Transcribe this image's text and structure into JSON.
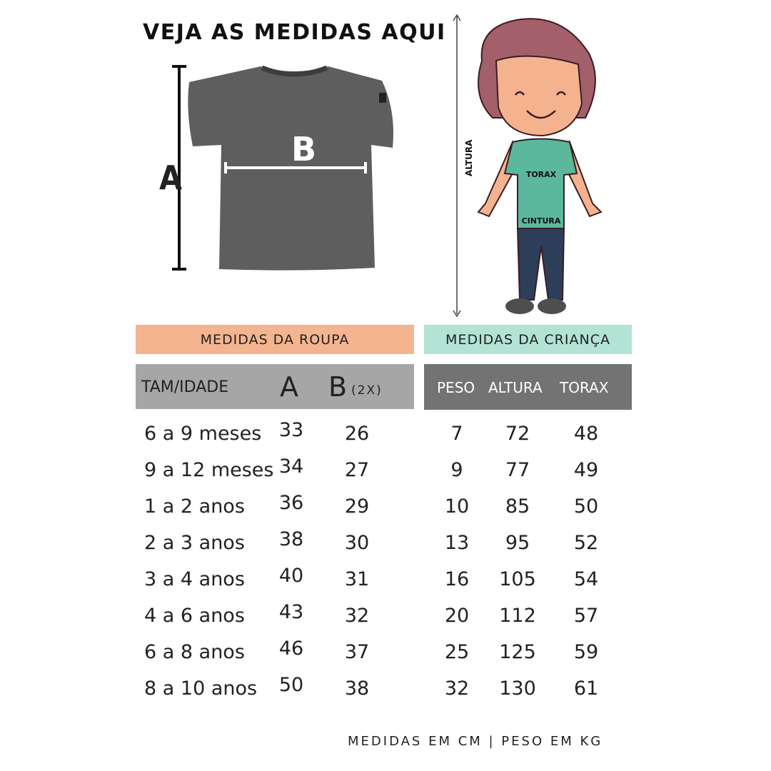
{
  "title": "VEJA AS MEDIDAS AQUI",
  "shirt_diagram": {
    "label_a": "A",
    "label_b": "B"
  },
  "kid_diagram": {
    "altura_label": "ALTURA",
    "torax_label": "TORAX",
    "cintura_label": "CINTURA"
  },
  "colors": {
    "roupa_header": "#f4b48f",
    "crianca_header": "#b3e3d5",
    "roupa_columns": "#a6a6a6",
    "crianca_columns": "#737373",
    "shirt": "#5e5e5e",
    "kid_shirt": "#5bb89c",
    "kid_pants": "#2c3e5a",
    "kid_hair": "#a35f6a"
  },
  "sections": {
    "roupa": "MEDIDAS DA ROUPA",
    "crianca": "MEDIDAS DA CRIANÇA"
  },
  "columns": {
    "tam": "TAM/IDADE",
    "a": "A",
    "b": "B",
    "b_note": "(2X)",
    "peso": "PESO",
    "altura": "ALTURA",
    "torax": "TORAX"
  },
  "rows": [
    {
      "tam": "6 a 9 meses",
      "a": "33",
      "b": "26",
      "peso": "7",
      "altura": "72",
      "torax": "48"
    },
    {
      "tam": "9 a 12 meses",
      "a": "34",
      "b": "27",
      "peso": "9",
      "altura": "77",
      "torax": "49"
    },
    {
      "tam": "1 a 2 anos",
      "a": "36",
      "b": "29",
      "peso": "10",
      "altura": "85",
      "torax": "50"
    },
    {
      "tam": "2 a 3 anos",
      "a": "38",
      "b": "30",
      "peso": "13",
      "altura": "95",
      "torax": "52"
    },
    {
      "tam": "3 a 4 anos",
      "a": "40",
      "b": "31",
      "peso": "16",
      "altura": "105",
      "torax": "54"
    },
    {
      "tam": "4 a 6 anos",
      "a": "43",
      "b": "32",
      "peso": "20",
      "altura": "112",
      "torax": "57"
    },
    {
      "tam": "6 a 8 anos",
      "a": "46",
      "b": "37",
      "peso": "25",
      "altura": "125",
      "torax": "59"
    },
    {
      "tam": "8 a 10 anos",
      "a": "50",
      "b": "38",
      "peso": "32",
      "altura": "130",
      "torax": "61"
    }
  ],
  "footer": "MEDIDAS EM CM | PESO EM KG"
}
